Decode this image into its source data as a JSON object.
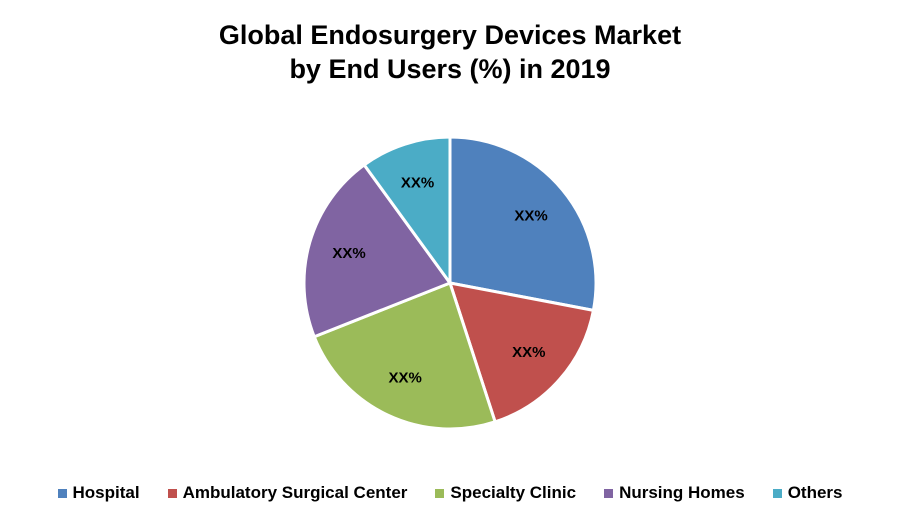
{
  "chart_data": {
    "type": "pie",
    "title_line1": "Global Endosurgery Devices Market",
    "title_line2": "by End Users (%) in 2019",
    "start_angle": "12 o'clock",
    "direction": "clockwise",
    "slices": [
      {
        "name": "Hospital",
        "value": 28,
        "label": "XX%",
        "color": "#4F81BD"
      },
      {
        "name": "Ambulatory Surgical Center",
        "value": 17,
        "label": "XX%",
        "color": "#C0504D"
      },
      {
        "name": "Specialty Clinic",
        "value": 24,
        "label": "XX%",
        "color": "#9BBB59"
      },
      {
        "name": "Nursing Homes",
        "value": 21,
        "label": "XX%",
        "color": "#8064A2"
      },
      {
        "name": "Others",
        "value": 10,
        "label": "XX%",
        "color": "#4BACC6"
      }
    ],
    "legend_position": "bottom"
  }
}
